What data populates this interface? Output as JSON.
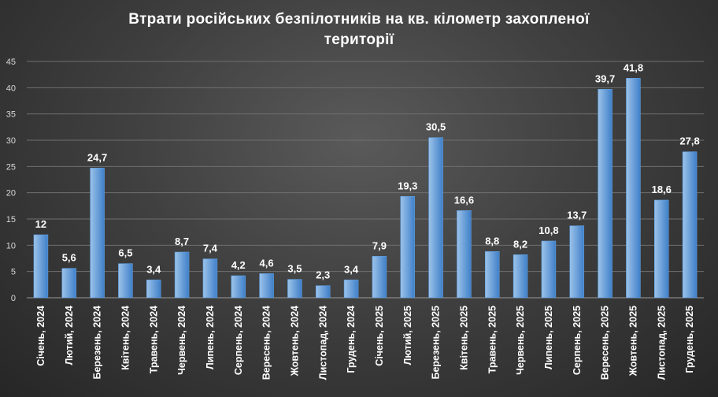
{
  "chart_data": {
    "type": "bar",
    "title_line1": "Втрати російських  безпілотників  на кв. кілометр  захопленої",
    "title_line2": "території",
    "categories": [
      "Січень, 2024",
      "Лютий, 2024",
      "Березень, 2024",
      "Квітень, 2024",
      "Травень, 2024",
      "Червень, 2024",
      "Липень, 2024",
      "Серпень, 2024",
      "Вересень, 2024",
      "Жовтень, 2024",
      "Листопад, 2024",
      "Грудень, 2024",
      "Січень, 2025",
      "Лютий, 2025",
      "Березень, 2025",
      "Квітень, 2025",
      "Травень, 2025",
      "Червень, 2025",
      "Липень, 2025",
      "Серпень, 2025",
      "Вересень, 2025",
      "Жовтень, 2025",
      "Листопад, 2025",
      "Грудень, 2025"
    ],
    "values": [
      12,
      5.6,
      24.7,
      6.5,
      3.4,
      8.7,
      7.4,
      4.2,
      4.6,
      3.5,
      2.3,
      3.4,
      7.9,
      19.3,
      30.5,
      16.6,
      8.8,
      8.2,
      10.8,
      13.7,
      39.7,
      41.8,
      18.6,
      27.8
    ],
    "data_labels": [
      "12",
      "5,6",
      "24,7",
      "6,5",
      "3,4",
      "8,7",
      "7,4",
      "4,2",
      "4,6",
      "3,5",
      "2,3",
      "3,4",
      "7,9",
      "19,3",
      "30,5",
      "16,6",
      "8,8",
      "8,2",
      "10,8",
      "13,7",
      "39,7",
      "41,8",
      "18,6",
      "27,8"
    ],
    "yticks": [
      0,
      5,
      10,
      15,
      20,
      25,
      30,
      35,
      40,
      45
    ],
    "ylim": [
      0,
      45
    ],
    "xlabel": "",
    "ylabel": "",
    "grid": true,
    "legend": "none",
    "colors": {
      "bar_light": "#9cc3ea",
      "bar_dark": "#3f7fc8",
      "grid": "#6f6f6f",
      "axis": "#9a9a9a"
    }
  }
}
